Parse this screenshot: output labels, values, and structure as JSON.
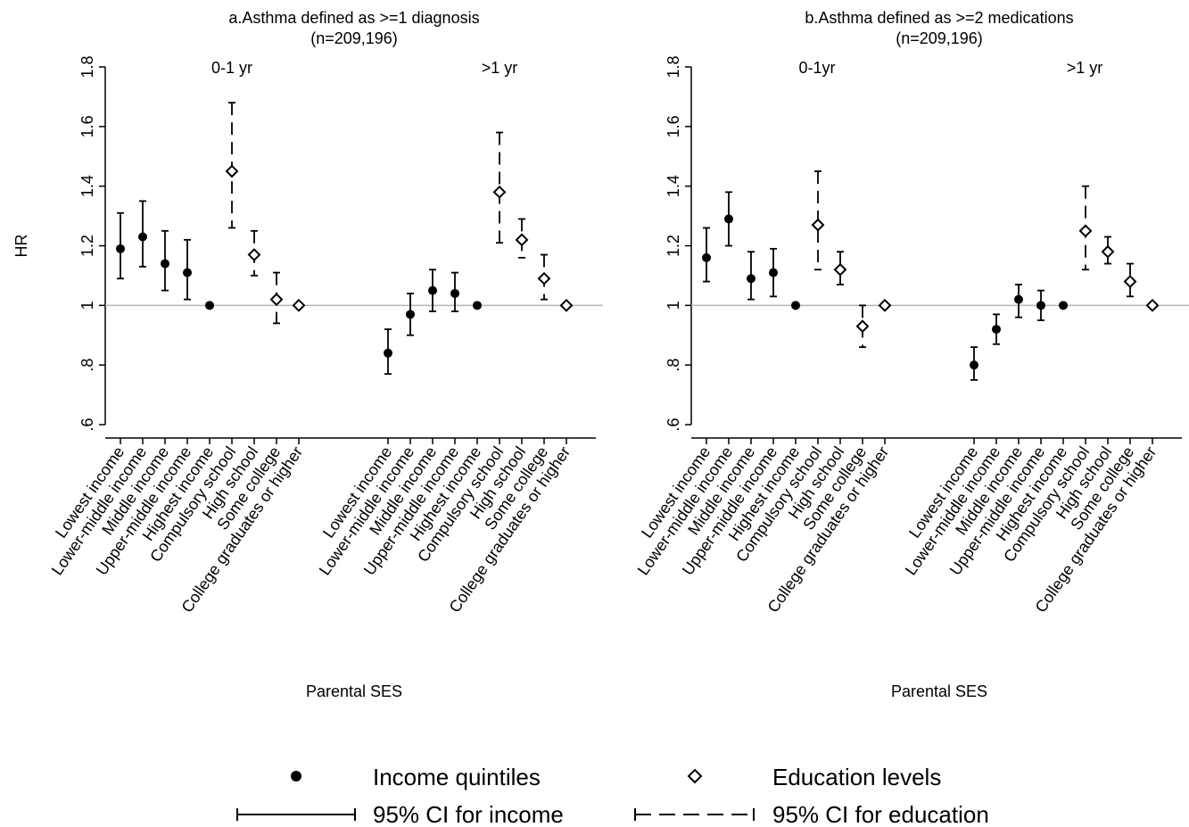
{
  "figure": {
    "ylabel_shared": "HR",
    "legend": {
      "income_marker": "Income quintiles",
      "education_marker": "Education levels",
      "income_ci": "95% CI for income",
      "education_ci": "95% CI for education"
    }
  },
  "chart_data": [
    {
      "type": "scatter",
      "title": "a.Asthma defined as >=1 diagnosis",
      "subtitle": "(n=209,196)",
      "xlabel": "Parental SES",
      "ylabel": "HR",
      "ylim": [
        0.6,
        1.8
      ],
      "yticks": [
        0.6,
        0.8,
        1.0,
        1.2,
        1.4,
        1.6,
        1.8
      ],
      "ytick_labels": [
        ".6",
        ".8",
        "1",
        "1.2",
        "1.4",
        "1.6",
        "1.8"
      ],
      "reference_line": 1.0,
      "grid": false,
      "legend_position": "bottom",
      "groups": [
        {
          "label": "0-1 yr",
          "points": [
            {
              "category": "Lowest income",
              "series": "Income quintiles",
              "hr": 1.19,
              "ci": [
                1.09,
                1.31
              ]
            },
            {
              "category": "Lower-middle income",
              "series": "Income quintiles",
              "hr": 1.23,
              "ci": [
                1.13,
                1.35
              ]
            },
            {
              "category": "Middle income",
              "series": "Income quintiles",
              "hr": 1.14,
              "ci": [
                1.05,
                1.25
              ]
            },
            {
              "category": "Upper-middle income",
              "series": "Income quintiles",
              "hr": 1.11,
              "ci": [
                1.02,
                1.22
              ]
            },
            {
              "category": "Highest income",
              "series": "Income quintiles",
              "hr": 1.0,
              "ci": null
            },
            {
              "category": "Compulsory school",
              "series": "Education levels",
              "hr": 1.45,
              "ci": [
                1.26,
                1.68
              ]
            },
            {
              "category": "High school",
              "series": "Education levels",
              "hr": 1.17,
              "ci": [
                1.1,
                1.25
              ]
            },
            {
              "category": "Some college",
              "series": "Education levels",
              "hr": 1.02,
              "ci": [
                0.94,
                1.11
              ]
            },
            {
              "category": "College graduates or higher",
              "series": "Education levels",
              "hr": 1.0,
              "ci": null
            }
          ]
        },
        {
          "label": ">1 yr",
          "points": [
            {
              "category": "Lowest income",
              "series": "Income quintiles",
              "hr": 0.84,
              "ci": [
                0.77,
                0.92
              ]
            },
            {
              "category": "Lower-middle income",
              "series": "Income quintiles",
              "hr": 0.97,
              "ci": [
                0.9,
                1.04
              ]
            },
            {
              "category": "Middle income",
              "series": "Income quintiles",
              "hr": 1.05,
              "ci": [
                0.98,
                1.12
              ]
            },
            {
              "category": "Upper-middle income",
              "series": "Income quintiles",
              "hr": 1.04,
              "ci": [
                0.98,
                1.11
              ]
            },
            {
              "category": "Highest income",
              "series": "Income quintiles",
              "hr": 1.0,
              "ci": null
            },
            {
              "category": "Compulsory school",
              "series": "Education levels",
              "hr": 1.38,
              "ci": [
                1.21,
                1.58
              ]
            },
            {
              "category": "High school",
              "series": "Education levels",
              "hr": 1.22,
              "ci": [
                1.16,
                1.29
              ]
            },
            {
              "category": "Some college",
              "series": "Education levels",
              "hr": 1.09,
              "ci": [
                1.02,
                1.17
              ]
            },
            {
              "category": "College graduates or higher",
              "series": "Education levels",
              "hr": 1.0,
              "ci": null
            }
          ]
        }
      ]
    },
    {
      "type": "scatter",
      "title": "b.Asthma defined as >=2 medications",
      "subtitle": "(n=209,196)",
      "xlabel": "Parental SES",
      "ylabel": "",
      "ylim": [
        0.6,
        1.8
      ],
      "yticks": [
        0.6,
        0.8,
        1.0,
        1.2,
        1.4,
        1.6,
        1.8
      ],
      "ytick_labels": [
        ".6",
        ".8",
        "1",
        "1.2",
        "1.4",
        "1.6",
        "1.8"
      ],
      "reference_line": 1.0,
      "grid": false,
      "legend_position": "bottom",
      "groups": [
        {
          "label": "0-1yr",
          "points": [
            {
              "category": "Lowest income",
              "series": "Income quintiles",
              "hr": 1.16,
              "ci": [
                1.08,
                1.26
              ]
            },
            {
              "category": "Lower-middle income",
              "series": "Income quintiles",
              "hr": 1.29,
              "ci": [
                1.2,
                1.38
              ]
            },
            {
              "category": "Middle income",
              "series": "Income quintiles",
              "hr": 1.09,
              "ci": [
                1.02,
                1.18
              ]
            },
            {
              "category": "Upper-middle income",
              "series": "Income quintiles",
              "hr": 1.11,
              "ci": [
                1.03,
                1.19
              ]
            },
            {
              "category": "Highest income",
              "series": "Income quintiles",
              "hr": 1.0,
              "ci": null
            },
            {
              "category": "Compulsory school",
              "series": "Education levels",
              "hr": 1.27,
              "ci": [
                1.12,
                1.45
              ]
            },
            {
              "category": "High school",
              "series": "Education levels",
              "hr": 1.12,
              "ci": [
                1.07,
                1.18
              ]
            },
            {
              "category": "Some college",
              "series": "Education levels",
              "hr": 0.93,
              "ci": [
                0.86,
                1.0
              ]
            },
            {
              "category": "College graduates or higher",
              "series": "Education levels",
              "hr": 1.0,
              "ci": null
            }
          ]
        },
        {
          "label": ">1 yr",
          "points": [
            {
              "category": "Lowest income",
              "series": "Income quintiles",
              "hr": 0.8,
              "ci": [
                0.75,
                0.86
              ]
            },
            {
              "category": "Lower-middle income",
              "series": "Income quintiles",
              "hr": 0.92,
              "ci": [
                0.87,
                0.97
              ]
            },
            {
              "category": "Middle income",
              "series": "Income quintiles",
              "hr": 1.02,
              "ci": [
                0.96,
                1.07
              ]
            },
            {
              "category": "Upper-middle income",
              "series": "Income quintiles",
              "hr": 1.0,
              "ci": [
                0.95,
                1.05
              ]
            },
            {
              "category": "Highest income",
              "series": "Income quintiles",
              "hr": 1.0,
              "ci": null
            },
            {
              "category": "Compulsory school",
              "series": "Education levels",
              "hr": 1.25,
              "ci": [
                1.12,
                1.4
              ]
            },
            {
              "category": "High school",
              "series": "Education levels",
              "hr": 1.18,
              "ci": [
                1.14,
                1.23
              ]
            },
            {
              "category": "Some college",
              "series": "Education levels",
              "hr": 1.08,
              "ci": [
                1.03,
                1.14
              ]
            },
            {
              "category": "College graduates or higher",
              "series": "Education levels",
              "hr": 1.0,
              "ci": null
            }
          ]
        }
      ]
    }
  ]
}
